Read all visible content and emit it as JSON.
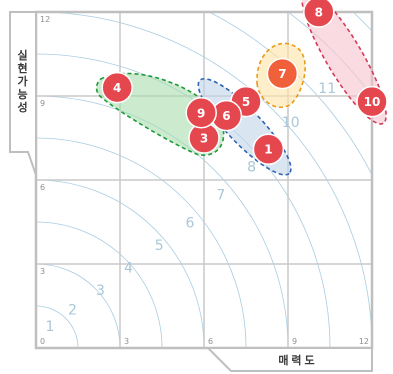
{
  "chart_data": {
    "type": "scatter",
    "xlabel": "매력도",
    "ylabel": "실현가능성",
    "xlim": [
      0,
      12
    ],
    "ylim": [
      0,
      12
    ],
    "x_ticks": [
      "0",
      "3",
      "6",
      "9",
      "12"
    ],
    "y_ticks": [
      "3",
      "6",
      "9",
      "12"
    ],
    "grid": true,
    "contour_labels": [
      "1",
      "2",
      "3",
      "4",
      "5",
      "6",
      "7",
      "8",
      "10",
      "11"
    ],
    "points": [
      {
        "label": "1",
        "x": 8.3,
        "y": 7.1
      },
      {
        "label": "3",
        "x": 6.0,
        "y": 7.5
      },
      {
        "label": "4",
        "x": 2.9,
        "y": 9.3
      },
      {
        "label": "5",
        "x": 7.5,
        "y": 8.8
      },
      {
        "label": "6",
        "x": 6.8,
        "y": 8.3
      },
      {
        "label": "7",
        "x": 8.8,
        "y": 9.8
      },
      {
        "label": "8",
        "x": 10.1,
        "y": 12.0
      },
      {
        "label": "9",
        "x": 5.9,
        "y": 8.4
      },
      {
        "label": "10",
        "x": 12.0,
        "y": 8.8
      }
    ],
    "clusters": [
      {
        "color": "#a8dcae",
        "stroke": "#1f9a3a"
      },
      {
        "color": "#c2d4ea",
        "stroke": "#2c64b0"
      },
      {
        "color": "#fde5a6",
        "stroke": "#e89b18"
      },
      {
        "color": "#f6c3cd",
        "stroke": "#d23a58"
      }
    ],
    "colors": {
      "point": "#e5474f",
      "point_highlight": "#f0603a",
      "grid": "#c9c9c9",
      "frame": "#bfbfbf",
      "contour": "#a9cde0"
    }
  }
}
